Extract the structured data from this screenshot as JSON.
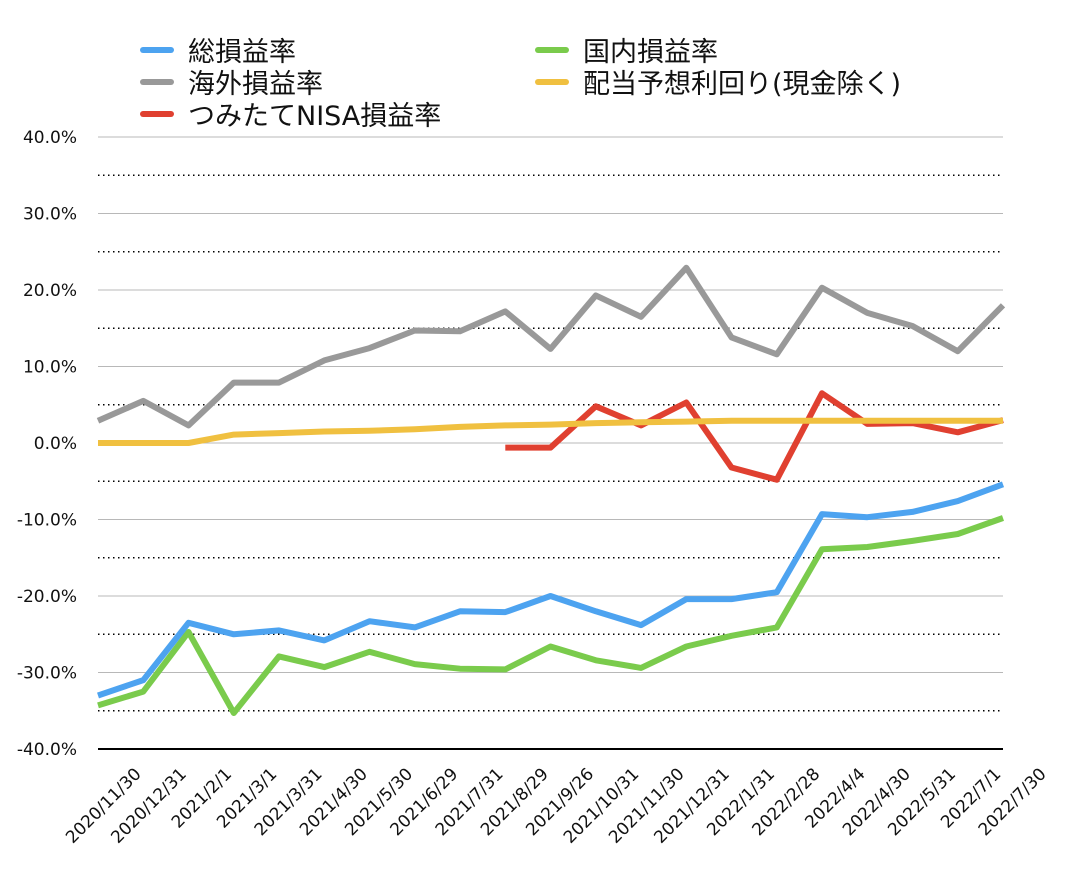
{
  "chart_data": {
    "type": "line",
    "title": "",
    "xlabel": "",
    "ylabel": "",
    "ylim": [
      -40,
      40
    ],
    "yticks": [
      "40.0%",
      "30.0%",
      "20.0%",
      "10.0%",
      "0.0%",
      "-10.0%",
      "-20.0%",
      "-30.0%",
      "-40.0%"
    ],
    "grid": "solid gridlines at 10% steps, dotted gridlines at 5% midpoints",
    "legend_position": "top",
    "categories": [
      "2020/11/30",
      "2020/12/31",
      "2021/2/1",
      "2021/3/1",
      "2021/3/31",
      "2021/4/30",
      "2021/5/30",
      "2021/6/29",
      "2021/7/31",
      "2021/8/29",
      "2021/9/26",
      "2021/10/31",
      "2021/11/30",
      "2021/12/31",
      "2022/1/31",
      "2022/2/28",
      "2022/4/4",
      "2022/4/30",
      "2022/5/31",
      "2022/7/1",
      "2022/7/30"
    ],
    "series": [
      {
        "name": "総損益率",
        "color": "#4DA3F0",
        "values": [
          -33,
          -31,
          -23.5,
          -25,
          -24.5,
          -25.8,
          -23.3,
          -24.1,
          -22,
          -22.1,
          -20,
          -22,
          -23.8,
          -20.4,
          -20.4,
          -19.5,
          -9.3,
          -9.7,
          -9,
          -7.6,
          -5.4
        ]
      },
      {
        "name": "国内損益率",
        "color": "#7ACB4C",
        "values": [
          -34.3,
          -32.5,
          -24.7,
          -35.3,
          -27.9,
          -29.3,
          -27.3,
          -28.9,
          -29.5,
          -29.6,
          -26.6,
          -28.4,
          -29.4,
          -26.6,
          -25.2,
          -24.1,
          -13.9,
          -13.6,
          -12.8,
          -11.9,
          -9.8
        ]
      },
      {
        "name": "海外損益率",
        "color": "#999999",
        "values": [
          2.9,
          5.5,
          2.3,
          7.9,
          7.9,
          10.8,
          12.4,
          14.7,
          14.6,
          17.2,
          12.3,
          19.3,
          16.5,
          22.9,
          13.8,
          11.6,
          20.3,
          17,
          15.3,
          12,
          18
        ]
      },
      {
        "name": "配当予想利回り(現金除く)",
        "color": "#F0C040",
        "values": [
          0,
          0,
          0,
          1.1,
          1.3,
          1.5,
          1.6,
          1.8,
          2.1,
          2.3,
          2.4,
          2.6,
          2.7,
          2.8,
          2.9,
          2.9,
          2.9,
          2.9,
          2.9,
          2.9,
          2.9
        ]
      },
      {
        "name": "つみたてNISA損益率",
        "color": "#E04030",
        "values": [
          null,
          null,
          null,
          null,
          null,
          null,
          null,
          null,
          null,
          -0.6,
          -0.6,
          4.8,
          2.3,
          5.3,
          -3.2,
          -4.8,
          6.5,
          2.5,
          2.6,
          1.4,
          3
        ]
      }
    ]
  },
  "legend": [
    {
      "label": "総損益率",
      "color": "#4DA3F0"
    },
    {
      "label": "国内損益率",
      "color": "#7ACB4C"
    },
    {
      "label": "海外損益率",
      "color": "#999999"
    },
    {
      "label": "配当予想利回り(現金除く)",
      "color": "#F0C040"
    },
    {
      "label": "つみたてNISA損益率",
      "color": "#E04030"
    }
  ]
}
